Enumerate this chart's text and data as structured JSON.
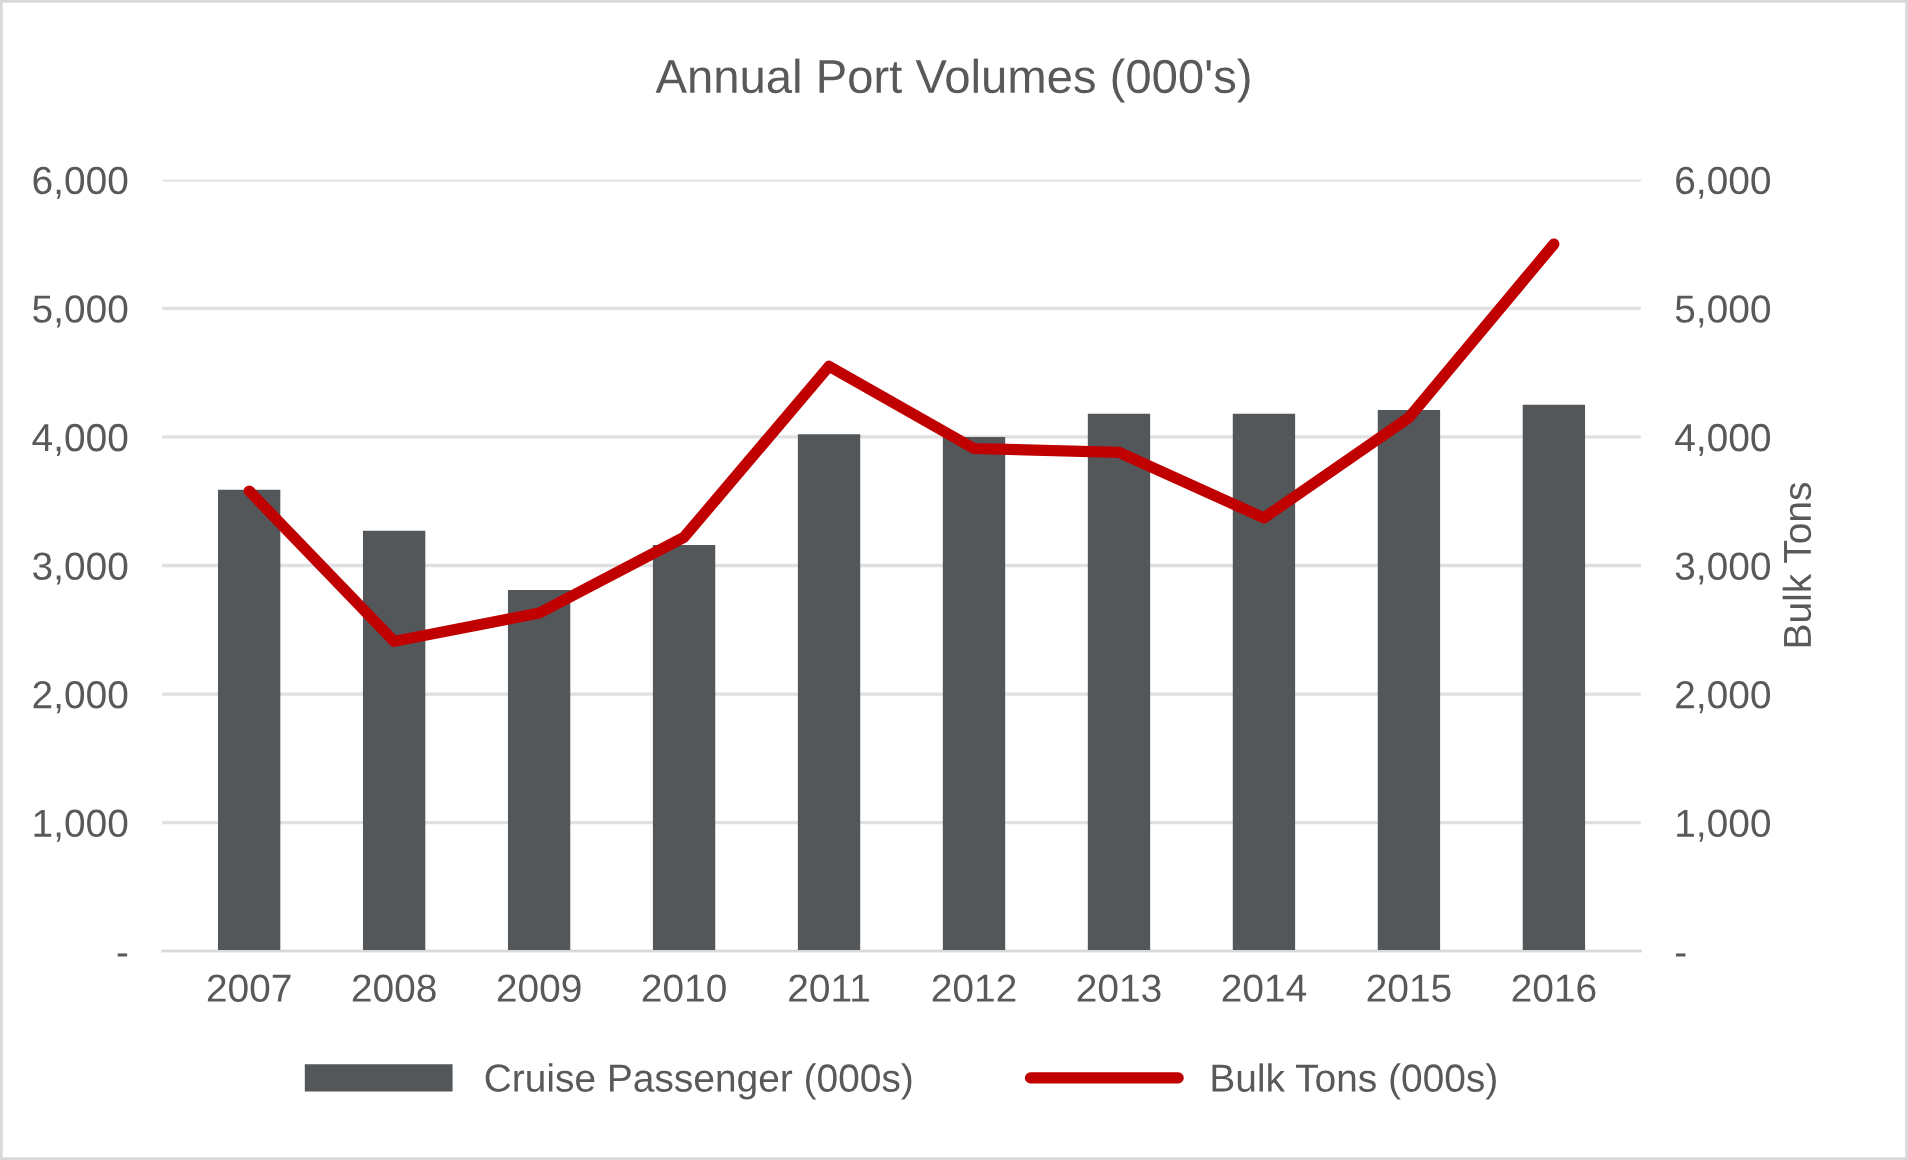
{
  "chart_data": {
    "type": "bar",
    "title": "Annual Port Volumes (000's)",
    "y2label": "Bulk Tons",
    "categories": [
      "2007",
      "2008",
      "2009",
      "2010",
      "2011",
      "2012",
      "2013",
      "2014",
      "2015",
      "2016"
    ],
    "series": [
      {
        "name": "Cruise Passenger (000s)",
        "color": "#54575a",
        "values": [
          3590,
          3270,
          2810,
          3160,
          4020,
          4000,
          4180,
          4180,
          4210,
          4250
        ]
      },
      {
        "name": "Bulk Tons (000s)",
        "type": "line",
        "axis": "y2",
        "color": "#c00000",
        "values": [
          3580,
          2410,
          2630,
          3220,
          4550,
          3910,
          3880,
          3370,
          4150,
          5500
        ]
      }
    ],
    "ylim": [
      0,
      6000
    ],
    "yticks": [
      {
        "value": 0,
        "label": "-"
      },
      {
        "value": 1000,
        "label": "1,000"
      },
      {
        "value": 2000,
        "label": "2,000"
      },
      {
        "value": 3000,
        "label": "3,000"
      },
      {
        "value": 4000,
        "label": "4,000"
      },
      {
        "value": 5000,
        "label": "5,000"
      },
      {
        "value": 6000,
        "label": "6,000"
      }
    ],
    "y2lim": [
      0,
      6000
    ],
    "y2ticks": [
      {
        "value": 0,
        "label": "-"
      },
      {
        "value": 1000,
        "label": "1,000"
      },
      {
        "value": 2000,
        "label": "2,000"
      },
      {
        "value": 3000,
        "label": "3,000"
      },
      {
        "value": 4000,
        "label": "4,000"
      },
      {
        "value": 5000,
        "label": "5,000"
      },
      {
        "value": 6000,
        "label": "6,000"
      }
    ],
    "grid": "y",
    "legend": "bottom",
    "marker": "none"
  }
}
